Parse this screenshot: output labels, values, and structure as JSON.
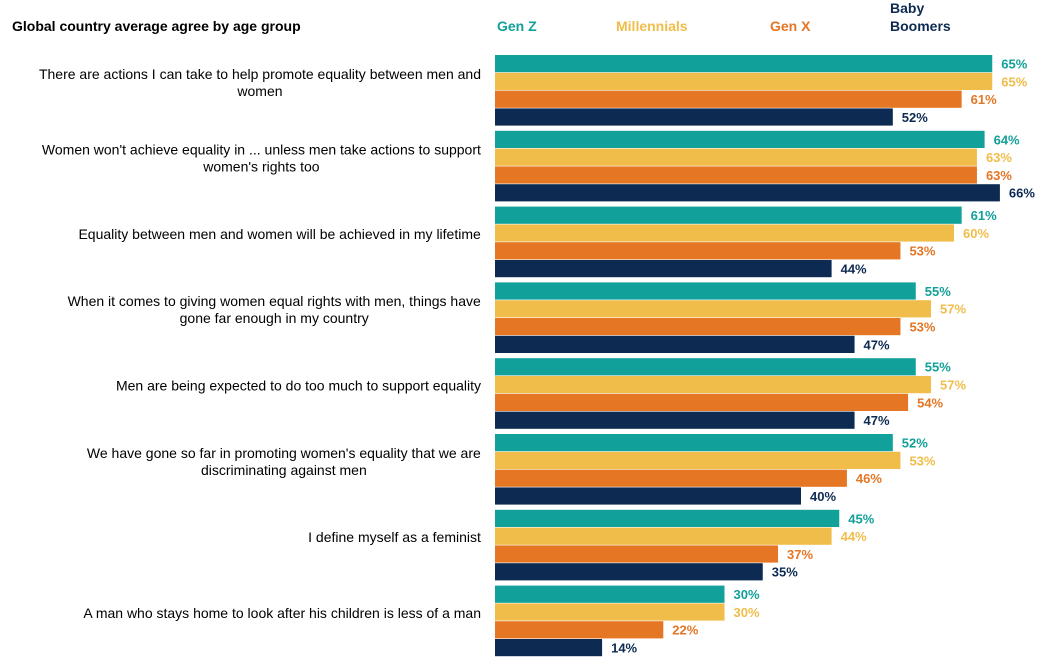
{
  "chart_data": {
    "type": "bar",
    "orientation": "horizontal",
    "title": "Global country average agree by age group",
    "categories": [
      [
        "There are actions I can take to help promote equality between men and",
        "women"
      ],
      [
        "Women won't achieve equality in ... unless men take actions to support",
        "women's rights too"
      ],
      [
        "Equality between men and women will be achieved in my lifetime"
      ],
      [
        "When it comes to giving women equal rights with men, things have",
        "gone far enough in my country"
      ],
      [
        "Men are being expected to do too much to support equality"
      ],
      [
        "We have gone so far in promoting women's equality that we are",
        "discriminating against men"
      ],
      [
        "I define myself as a feminist"
      ],
      [
        "A man who stays home to look after his children is less of a man"
      ]
    ],
    "series": [
      {
        "name": "Gen Z",
        "legend_lines": [
          "Gen Z"
        ],
        "color": "#12A09A",
        "label_color": "#12A09A",
        "values": [
          65,
          64,
          61,
          55,
          55,
          52,
          45,
          30
        ]
      },
      {
        "name": "Millennials",
        "legend_lines": [
          "Millennials"
        ],
        "color": "#F1BD4A",
        "label_color": "#F1BD4A",
        "values": [
          65,
          63,
          60,
          57,
          57,
          53,
          44,
          30
        ]
      },
      {
        "name": "Gen X",
        "legend_lines": [
          "Gen X"
        ],
        "color": "#E47624",
        "label_color": "#E47624",
        "values": [
          61,
          63,
          53,
          53,
          54,
          46,
          37,
          22
        ]
      },
      {
        "name": "Baby Boomers",
        "legend_lines": [
          "Baby",
          "Boomers"
        ],
        "color": "#0D2A52",
        "label_color": "#0D2A52",
        "values": [
          52,
          66,
          44,
          47,
          47,
          40,
          35,
          14
        ]
      }
    ],
    "value_suffix": "%",
    "xlim": [
      0,
      66
    ],
    "legend_position": "top",
    "grid": false
  }
}
